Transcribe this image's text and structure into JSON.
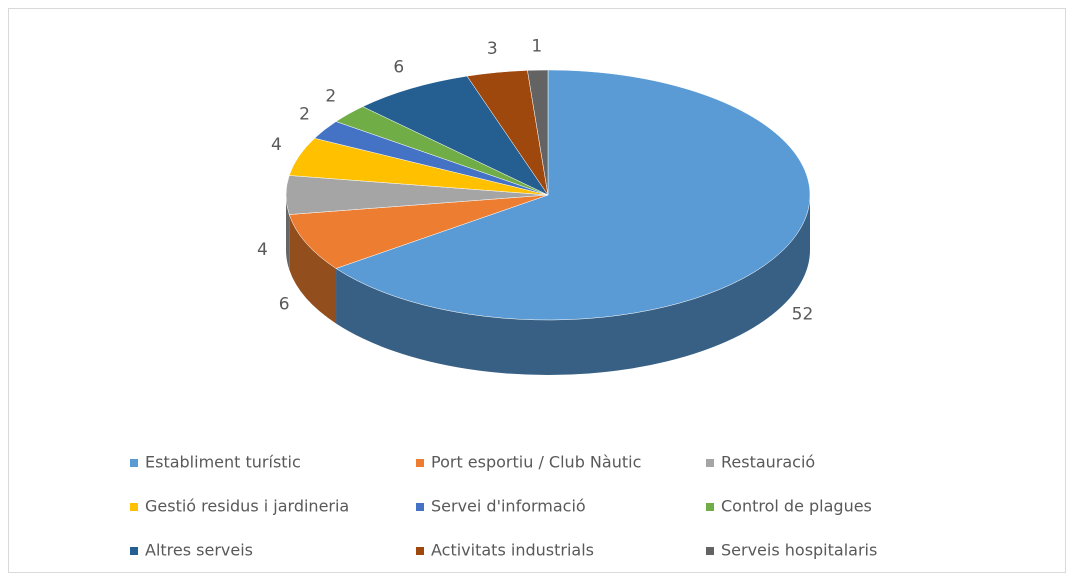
{
  "chart_data": {
    "type": "pie3d",
    "categories": [
      "Establiment turístic",
      "Port esportiu / Club Nàutic",
      "Restauració",
      "Gestió residus i jardineria",
      "Servei d'informació",
      "Control de plagues",
      "Altres serveis",
      "Activitats industrials",
      "Serveis hospitalaris"
    ],
    "values": [
      52,
      6,
      4,
      4,
      2,
      2,
      6,
      3,
      1
    ],
    "colors": [
      "#5B9BD5",
      "#ED7D31",
      "#A5A5A5",
      "#FFC000",
      "#4472C4",
      "#70AD47",
      "#255E91",
      "#9E480E",
      "#636363"
    ],
    "legend": "bottom"
  }
}
